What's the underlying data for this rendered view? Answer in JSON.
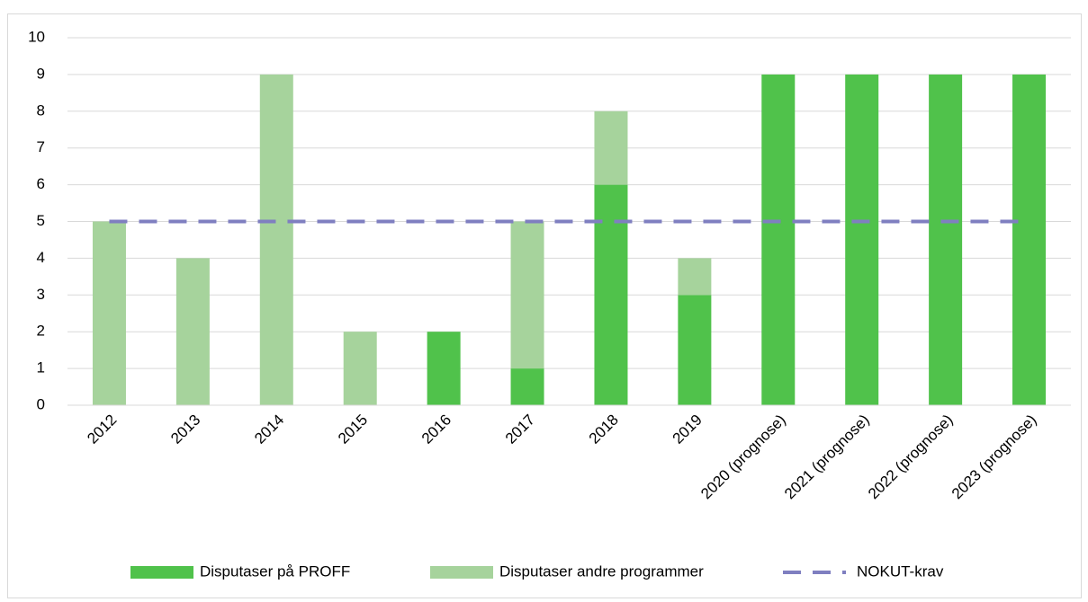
{
  "chart_data": {
    "type": "bar",
    "stacked": true,
    "categories": [
      "2012",
      "2013",
      "2014",
      "2015",
      "2016",
      "2017",
      "2018",
      "2019",
      "2020 (prognose)",
      "2021 (prognose)",
      "2022 (prognose)",
      "2023 (prognose)"
    ],
    "series": [
      {
        "name": "Disputaser på PROFF",
        "color": "#50c24b",
        "values": [
          0,
          0,
          0,
          0,
          2,
          1,
          6,
          3,
          9,
          9,
          9,
          9
        ]
      },
      {
        "name": "Disputaser andre programmer",
        "color": "#a6d39c",
        "values": [
          5,
          4,
          9,
          2,
          0,
          4,
          2,
          1,
          0,
          0,
          0,
          0
        ]
      },
      {
        "name": "NOKUT-krav",
        "color": "#7f7fc0",
        "type": "line",
        "dashed": true,
        "values": [
          5,
          5,
          5,
          5,
          5,
          5,
          5,
          5,
          5,
          5,
          5,
          5
        ]
      }
    ],
    "ylim": [
      0,
      10
    ],
    "yticks": [
      0,
      1,
      2,
      3,
      4,
      5,
      6,
      7,
      8,
      9,
      10
    ],
    "grid": true,
    "legend": "bottom"
  }
}
